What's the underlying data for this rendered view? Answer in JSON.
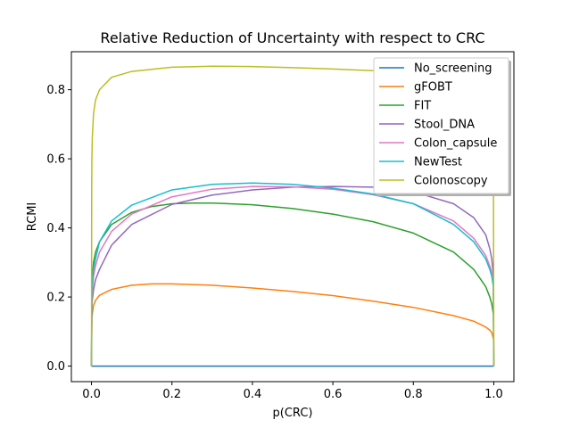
{
  "chart_data": {
    "type": "line",
    "title": "Relative Reduction of Uncertainty with respect to CRC",
    "xlabel": "p(CRC)",
    "ylabel": "RCMI",
    "xlim": [
      -0.05,
      1.05
    ],
    "ylim": [
      -0.045,
      0.91
    ],
    "xticks": [
      {
        "value": 0.0,
        "label": "0.0"
      },
      {
        "value": 0.2,
        "label": "0.2"
      },
      {
        "value": 0.4,
        "label": "0.4"
      },
      {
        "value": 0.6,
        "label": "0.6"
      },
      {
        "value": 0.8,
        "label": "0.8"
      },
      {
        "value": 1.0,
        "label": "1.0"
      }
    ],
    "yticks": [
      {
        "value": 0.0,
        "label": "0.0"
      },
      {
        "value": 0.2,
        "label": "0.2"
      },
      {
        "value": 0.4,
        "label": "0.4"
      },
      {
        "value": 0.6,
        "label": "0.6"
      },
      {
        "value": 0.8,
        "label": "0.8"
      }
    ],
    "grid": false,
    "legend_position": "top-right",
    "series": [
      {
        "name": "No_screening",
        "color": "#1f77b4",
        "x": [
          0.0,
          0.001,
          0.01,
          0.1,
          0.2,
          0.4,
          0.6,
          0.8,
          0.9,
          0.99,
          0.999,
          1.0
        ],
        "y": [
          0.0,
          0.0,
          0.0,
          0.0,
          0.0,
          0.0,
          0.0,
          0.0,
          0.0,
          0.0,
          0.0,
          0.0
        ]
      },
      {
        "name": "gFOBT",
        "color": "#ff7f0e",
        "x": [
          0.0,
          0.001,
          0.005,
          0.01,
          0.02,
          0.05,
          0.1,
          0.15,
          0.2,
          0.3,
          0.4,
          0.5,
          0.6,
          0.7,
          0.8,
          0.9,
          0.95,
          0.98,
          0.99,
          0.995,
          0.999,
          1.0
        ],
        "y": [
          0.0,
          0.14,
          0.175,
          0.19,
          0.205,
          0.222,
          0.234,
          0.238,
          0.238,
          0.234,
          0.226,
          0.216,
          0.204,
          0.188,
          0.17,
          0.146,
          0.13,
          0.113,
          0.104,
          0.097,
          0.08,
          0.07
        ]
      },
      {
        "name": "FIT",
        "color": "#2ca02c",
        "x": [
          0.0,
          0.001,
          0.005,
          0.01,
          0.02,
          0.05,
          0.1,
          0.15,
          0.2,
          0.25,
          0.3,
          0.4,
          0.5,
          0.6,
          0.7,
          0.8,
          0.9,
          0.95,
          0.98,
          0.99,
          0.995,
          0.999,
          1.0
        ],
        "y": [
          0.0,
          0.24,
          0.3,
          0.33,
          0.36,
          0.41,
          0.445,
          0.462,
          0.47,
          0.472,
          0.472,
          0.467,
          0.456,
          0.44,
          0.418,
          0.385,
          0.33,
          0.28,
          0.23,
          0.2,
          0.18,
          0.15,
          0.0
        ]
      },
      {
        "name": "Stool_DNA",
        "color": "#9467bd",
        "x": [
          0.0,
          0.001,
          0.005,
          0.01,
          0.02,
          0.05,
          0.1,
          0.2,
          0.3,
          0.4,
          0.5,
          0.6,
          0.7,
          0.8,
          0.9,
          0.95,
          0.98,
          0.99,
          0.995,
          0.999,
          1.0
        ],
        "y": [
          0.0,
          0.18,
          0.22,
          0.25,
          0.28,
          0.35,
          0.41,
          0.468,
          0.495,
          0.51,
          0.518,
          0.52,
          0.518,
          0.505,
          0.47,
          0.43,
          0.38,
          0.34,
          0.31,
          0.26,
          0.0
        ]
      },
      {
        "name": "Colon_capsule",
        "color": "#e377c2",
        "x": [
          0.0,
          0.001,
          0.005,
          0.01,
          0.02,
          0.05,
          0.1,
          0.2,
          0.3,
          0.4,
          0.5,
          0.6,
          0.7,
          0.8,
          0.9,
          0.95,
          0.98,
          0.99,
          0.995,
          0.999,
          1.0
        ],
        "y": [
          0.0,
          0.2,
          0.26,
          0.29,
          0.33,
          0.39,
          0.44,
          0.49,
          0.512,
          0.52,
          0.519,
          0.512,
          0.496,
          0.47,
          0.42,
          0.37,
          0.32,
          0.29,
          0.27,
          0.24,
          0.0
        ]
      },
      {
        "name": "NewTest",
        "color": "#17becf",
        "x": [
          0.0,
          0.001,
          0.005,
          0.01,
          0.02,
          0.05,
          0.1,
          0.2,
          0.3,
          0.4,
          0.5,
          0.6,
          0.7,
          0.8,
          0.9,
          0.95,
          0.98,
          0.99,
          0.995,
          0.999,
          1.0
        ],
        "y": [
          0.0,
          0.22,
          0.28,
          0.31,
          0.36,
          0.42,
          0.466,
          0.51,
          0.526,
          0.53,
          0.526,
          0.515,
          0.498,
          0.47,
          0.41,
          0.36,
          0.31,
          0.28,
          0.26,
          0.23,
          0.0
        ]
      },
      {
        "name": "Colonoscopy",
        "color": "#bcbd22",
        "x": [
          0.0,
          0.0005,
          0.001,
          0.002,
          0.005,
          0.01,
          0.02,
          0.05,
          0.1,
          0.2,
          0.3,
          0.4,
          0.5,
          0.6,
          0.7,
          0.8,
          0.9,
          0.95,
          0.98,
          0.99,
          0.995,
          0.999,
          1.0
        ],
        "y": [
          0.0,
          0.5,
          0.6,
          0.66,
          0.73,
          0.77,
          0.8,
          0.836,
          0.853,
          0.865,
          0.868,
          0.867,
          0.864,
          0.86,
          0.855,
          0.849,
          0.84,
          0.83,
          0.82,
          0.8,
          0.76,
          0.7,
          0.0
        ]
      }
    ]
  }
}
